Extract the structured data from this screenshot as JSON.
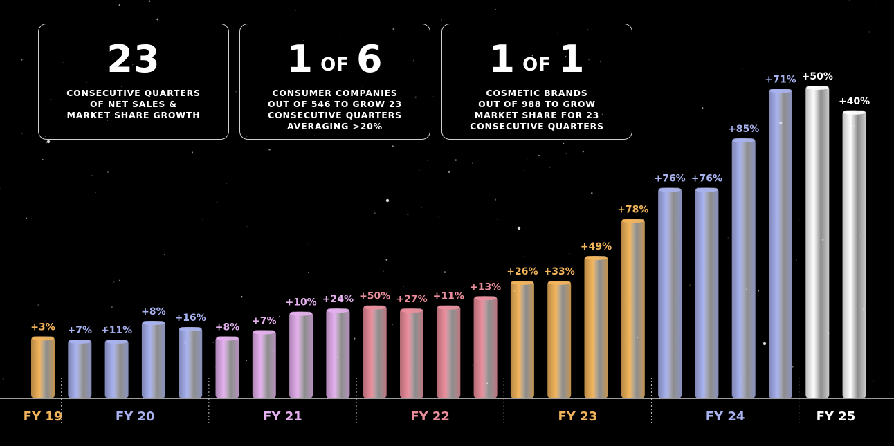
{
  "stats": [
    {
      "main": "23",
      "desc": [
        "CONSECUTIVE QUARTERS",
        "OF NET SALES &",
        "MARKET SHARE GROWTH"
      ]
    },
    {
      "main_left": "1",
      "main_of": "OF",
      "main_right": "6",
      "desc": [
        "CONSUMER COMPANIES",
        "OUT OF 546 TO GROW 23",
        "CONSECUTIVE QUARTERS",
        "AVERAGING >20%"
      ]
    },
    {
      "main_left": "1",
      "main_of": "OF",
      "main_right": "1",
      "desc": [
        "COSMETIC BRANDS",
        "OUT OF 988 TO GROW",
        "MARKET SHARE FOR 23",
        "CONSECUTIVE QUARTERS"
      ]
    }
  ],
  "colors": {
    "FY 19": "#f2b45a",
    "FY 20": "#a8b2ef",
    "FY 21": "#e4b0ee",
    "FY 22": "#eb8e9c",
    "FY 23": "#f3b55c",
    "FY 24": "#a8b2ef",
    "FY 25": "#ffffff"
  },
  "chart_data": {
    "type": "bar",
    "groups": [
      {
        "label": "FY 19",
        "count": 1
      },
      {
        "label": "FY 20",
        "count": 4
      },
      {
        "label": "FY 21",
        "count": 4
      },
      {
        "label": "FY 22",
        "count": 4
      },
      {
        "label": "FY 23",
        "count": 4
      },
      {
        "label": "FY 24",
        "count": 4
      },
      {
        "label": "FY 25",
        "count": 2
      }
    ],
    "labels": [
      "+3%",
      "+7%",
      "+11%",
      "+8%",
      "+16%",
      "+8%",
      "+7%",
      "+10%",
      "+24%",
      "+50%",
      "+27%",
      "+11%",
      "+13%",
      "+26%",
      "+33%",
      "+49%",
      "+78%",
      "+76%",
      "+76%",
      "+85%",
      "+71%",
      "+50%",
      "+40%"
    ],
    "relative_heights": [
      0.2,
      0.19,
      0.19,
      0.25,
      0.23,
      0.2,
      0.22,
      0.28,
      0.29,
      0.3,
      0.29,
      0.3,
      0.33,
      0.38,
      0.38,
      0.46,
      0.58,
      0.68,
      0.68,
      0.84,
      1.0,
      1.01,
      0.93
    ]
  }
}
